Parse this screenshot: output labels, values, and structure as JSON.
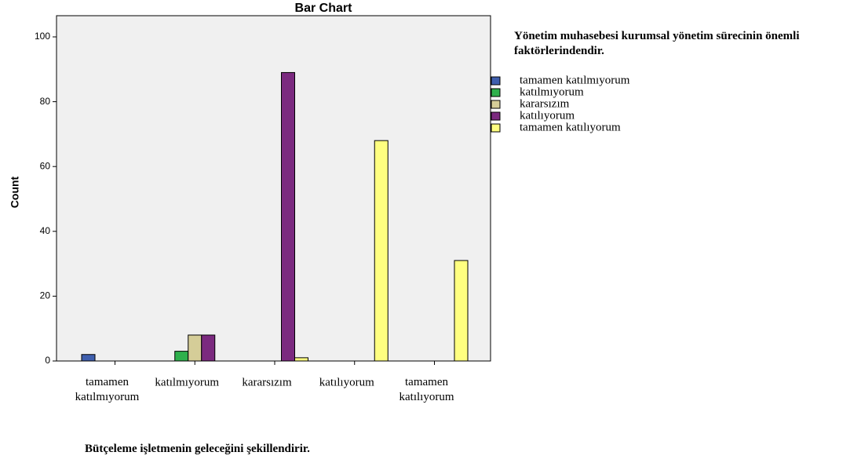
{
  "chart_data": {
    "type": "bar",
    "title": "Bar Chart",
    "x_label": "Bütçeleme işletmenin geleceğini şekillendirir.",
    "y_label": "Count",
    "legend_title": "Yönetim muhasebesi kurumsal yönetim sürecinin önemli faktörlerindendir.",
    "categories": [
      "tamamen katılmıyorum",
      "katılmıyorum",
      "kararsızım",
      "katılıyorum",
      "tamamen katılıyorum"
    ],
    "series": [
      {
        "name": "tamamen katılmıyorum",
        "color": "#3f5fae",
        "values": [
          2,
          0,
          0,
          0,
          0
        ]
      },
      {
        "name": "katılmıyorum",
        "color": "#2fb04c",
        "values": [
          0,
          3,
          0,
          0,
          0
        ]
      },
      {
        "name": "kararsızım",
        "color": "#d5cd98",
        "values": [
          0,
          8,
          0,
          0,
          0
        ]
      },
      {
        "name": "katılıyorum",
        "color": "#7b2a7f",
        "values": [
          0,
          8,
          89,
          0,
          0
        ]
      },
      {
        "name": "tamamen katılıyorum",
        "color": "#ffff80",
        "values": [
          0,
          0,
          1,
          68,
          31
        ]
      }
    ],
    "ylim": [
      0,
      100
    ],
    "yticks": [
      0,
      20,
      40,
      60,
      80,
      100
    ],
    "legend": "right"
  }
}
